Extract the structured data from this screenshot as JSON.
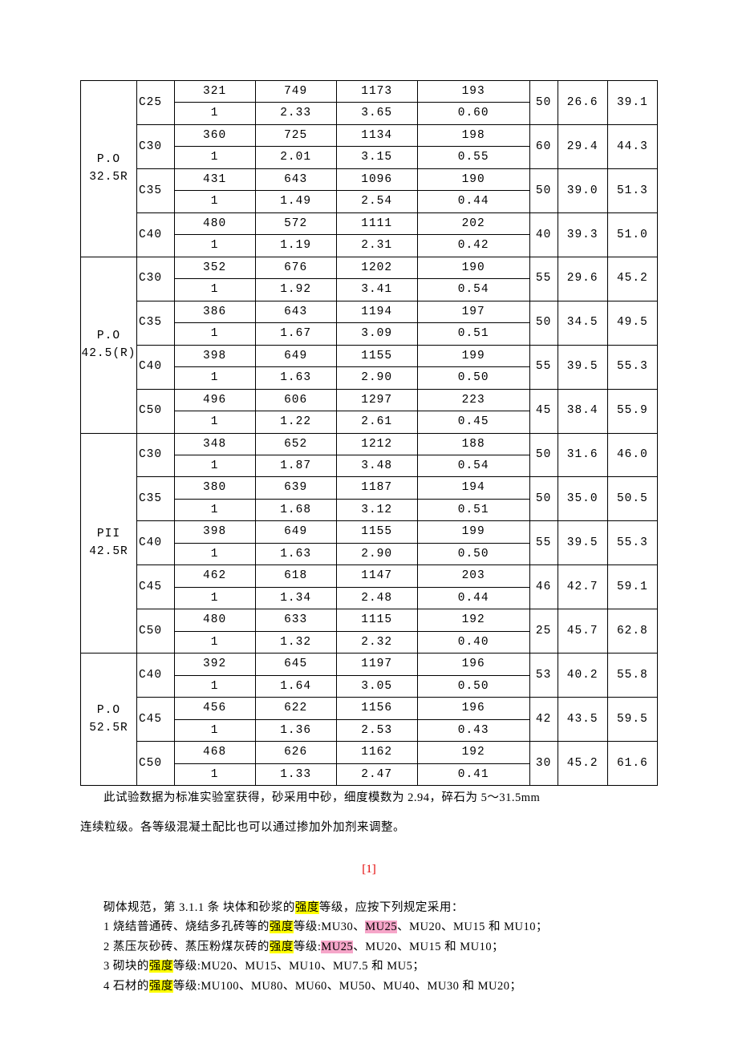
{
  "table": {
    "groups": [
      {
        "cement": "P.O\n32.5R",
        "grades": [
          {
            "grade": "C25",
            "a": [
              "321",
              "749",
              "1173",
              "193"
            ],
            "b": [
              "1",
              "2.33",
              "3.65",
              "0.60"
            ],
            "r": [
              "50",
              "26.6",
              "39.1"
            ]
          },
          {
            "grade": "C30",
            "a": [
              "360",
              "725",
              "1134",
              "198"
            ],
            "b": [
              "1",
              "2.01",
              "3.15",
              "0.55"
            ],
            "r": [
              "60",
              "29.4",
              "44.3"
            ]
          },
          {
            "grade": "C35",
            "a": [
              "431",
              "643",
              "1096",
              "190"
            ],
            "b": [
              "1",
              "1.49",
              "2.54",
              "0.44"
            ],
            "r": [
              "50",
              "39.0",
              "51.3"
            ]
          },
          {
            "grade": "C40",
            "a": [
              "480",
              "572",
              "1111",
              "202"
            ],
            "b": [
              "1",
              "1.19",
              "2.31",
              "0.42"
            ],
            "r": [
              "40",
              "39.3",
              "51.0"
            ]
          }
        ]
      },
      {
        "cement": "P.O\n42.5(R)",
        "grades": [
          {
            "grade": "C30",
            "a": [
              "352",
              "676",
              "1202",
              "190"
            ],
            "b": [
              "1",
              "1.92",
              "3.41",
              "0.54"
            ],
            "r": [
              "55",
              "29.6",
              "45.2"
            ]
          },
          {
            "grade": "C35",
            "a": [
              "386",
              "643",
              "1194",
              "197"
            ],
            "b": [
              "1",
              "1.67",
              "3.09",
              "0.51"
            ],
            "r": [
              "50",
              "34.5",
              "49.5"
            ]
          },
          {
            "grade": "C40",
            "a": [
              "398",
              "649",
              "1155",
              "199"
            ],
            "b": [
              "1",
              "1.63",
              "2.90",
              "0.50"
            ],
            "r": [
              "55",
              "39.5",
              "55.3"
            ]
          },
          {
            "grade": "C50",
            "a": [
              "496",
              "606",
              "1297",
              "223"
            ],
            "b": [
              "1",
              "1.22",
              "2.61",
              "0.45"
            ],
            "r": [
              "45",
              "38.4",
              "55.9"
            ]
          }
        ]
      },
      {
        "cement": "PII\n42.5R",
        "grades": [
          {
            "grade": "C30",
            "a": [
              "348",
              "652",
              "1212",
              "188"
            ],
            "b": [
              "1",
              "1.87",
              "3.48",
              "0.54"
            ],
            "r": [
              "50",
              "31.6",
              "46.0"
            ]
          },
          {
            "grade": "C35",
            "a": [
              "380",
              "639",
              "1187",
              "194"
            ],
            "b": [
              "1",
              "1.68",
              "3.12",
              "0.51"
            ],
            "r": [
              "50",
              "35.0",
              "50.5"
            ]
          },
          {
            "grade": "C40",
            "a": [
              "398",
              "649",
              "1155",
              "199"
            ],
            "b": [
              "1",
              "1.63",
              "2.90",
              "0.50"
            ],
            "r": [
              "55",
              "39.5",
              "55.3"
            ]
          },
          {
            "grade": "C45",
            "a": [
              "462",
              "618",
              "1147",
              "203"
            ],
            "b": [
              "1",
              "1.34",
              "2.48",
              "0.44"
            ],
            "r": [
              "46",
              "42.7",
              "59.1"
            ]
          },
          {
            "grade": "C50",
            "a": [
              "480",
              "633",
              "1115",
              "192"
            ],
            "b": [
              "1",
              "1.32",
              "2.32",
              "0.40"
            ],
            "r": [
              "25",
              "45.7",
              "62.8"
            ]
          }
        ]
      },
      {
        "cement": "P.O\n52.5R",
        "grades": [
          {
            "grade": "C40",
            "a": [
              "392",
              "645",
              "1197",
              "196"
            ],
            "b": [
              "1",
              "1.64",
              "3.05",
              "0.50"
            ],
            "r": [
              "53",
              "40.2",
              "55.8"
            ]
          },
          {
            "grade": "C45",
            "a": [
              "456",
              "622",
              "1156",
              "196"
            ],
            "b": [
              "1",
              "1.36",
              "2.53",
              "0.43"
            ],
            "r": [
              "42",
              "43.5",
              "59.5"
            ]
          },
          {
            "grade": "C50",
            "a": [
              "468",
              "626",
              "1162",
              "192"
            ],
            "b": [
              "1",
              "1.33",
              "2.47",
              "0.41"
            ],
            "r": [
              "30",
              "45.2",
              "61.6"
            ]
          }
        ]
      }
    ]
  },
  "note1": "此试验数据为标准实验室获得，砂采用中砂，细度模数为 2.94，碎石为 5～31.5mm",
  "note2": "连续粒级。各等级混凝土配比也可以通过掺加外加剂来调整。",
  "ref": "[1]",
  "rules": {
    "l0a": "砌体规范，第 3.1.1 条 块体和砂浆的",
    "l0b": "等级，应按下列规定采用：",
    "l1a": "1 烧结普通砖、烧结多孔砖等的",
    "l1b": "等级:MU30、",
    "l1c": "、MU20、MU15 和 MU10；",
    "l2a": "2 蒸压灰砂砖、蒸压粉煤灰砖的",
    "l2b": "等级:",
    "l2c": "、MU20、MU15 和 MU10；",
    "l3a": "3 砌块的",
    "l3b": "等级:MU20、MU15、MU10、MU7.5 和 MU5；",
    "l4a": "4 石材的",
    "l4b": "等级:MU100、MU80、MU60、MU50、MU40、MU30 和 MU20；",
    "s": "强度",
    "mu25": "MU25"
  }
}
